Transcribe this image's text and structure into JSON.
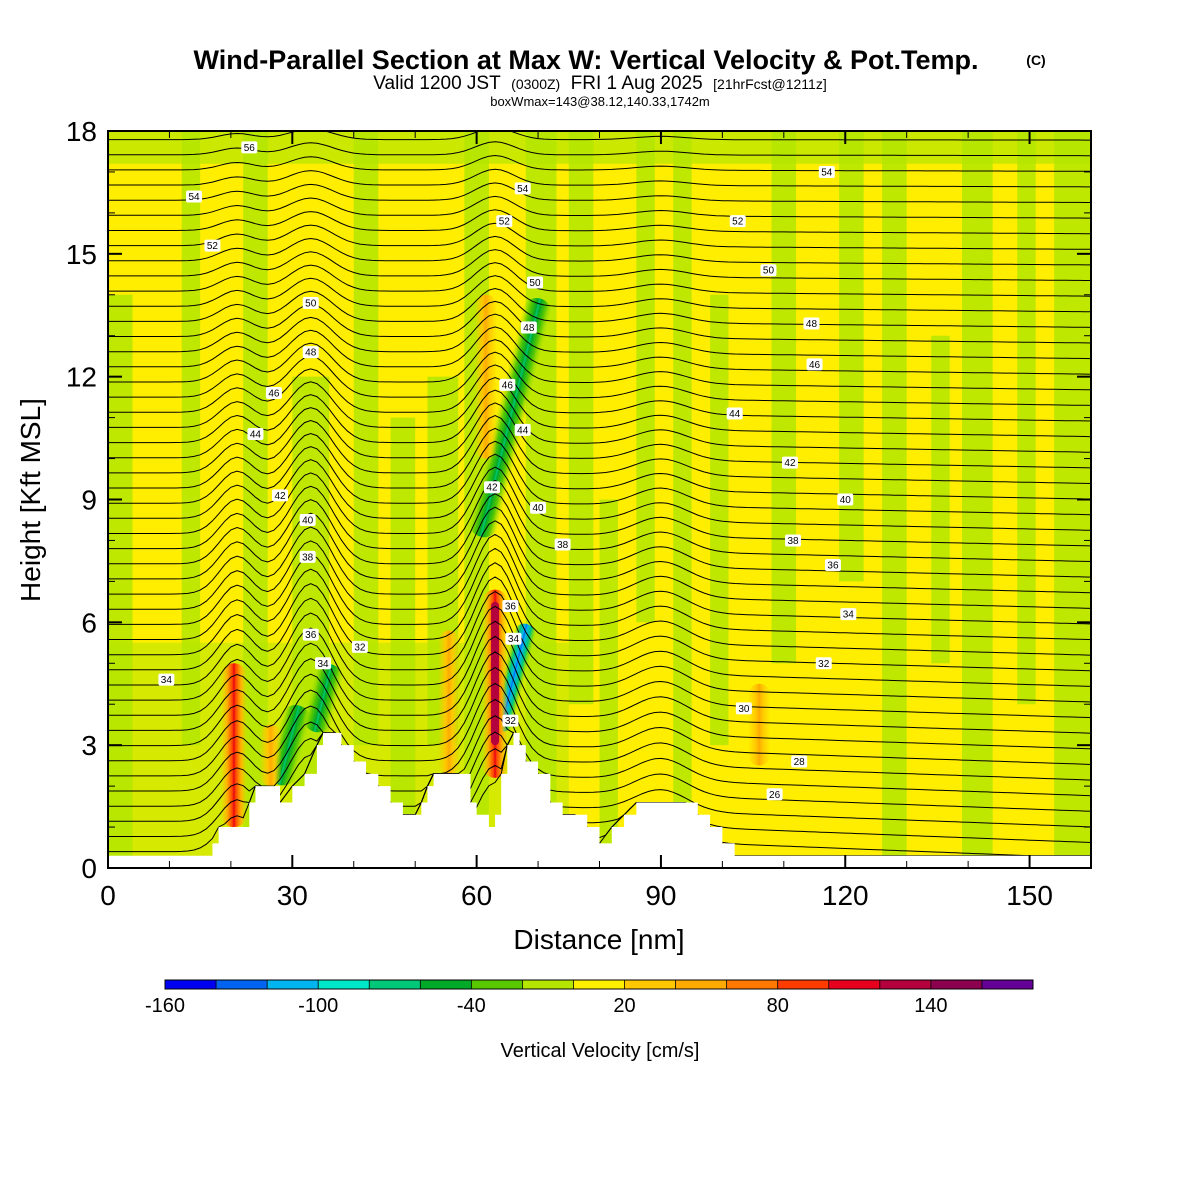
{
  "title": {
    "main": "Wind-Parallel Section at Max W: Vertical Velocity & Pot.Temp.",
    "copyright": "(C)",
    "valid_prefix": "Valid 1200 JST",
    "utc": "(0300Z)",
    "valid_date": "FRI 1 Aug 2025",
    "forecast": "[21hrFcst@1211z]",
    "box": "boxWmax=143@38.12,140.33,1742m"
  },
  "chart_data": {
    "type": "heatmap",
    "xlabel": "Distance [nm]",
    "ylabel": "Height [Kft MSL]",
    "xlim": [
      0,
      160
    ],
    "ylim": [
      0,
      18
    ],
    "x_ticks": [
      "0",
      "30",
      "60",
      "90",
      "120",
      "150"
    ],
    "x_tick_values": [
      0,
      30,
      60,
      90,
      120,
      150
    ],
    "y_ticks": [
      "0",
      "3",
      "6",
      "9",
      "12",
      "15",
      "18"
    ],
    "y_tick_values": [
      0,
      3,
      6,
      9,
      12,
      15,
      18
    ],
    "field": "Vertical Velocity [cm/s]",
    "background_level_color": "#ffee00",
    "terrain": [
      [
        0,
        0.3
      ],
      [
        16,
        0.3
      ],
      [
        17,
        0.6
      ],
      [
        18,
        1.0
      ],
      [
        22,
        1.0
      ],
      [
        23,
        1.6
      ],
      [
        24,
        2.0
      ],
      [
        26,
        2.0
      ],
      [
        28,
        1.6
      ],
      [
        30,
        2.0
      ],
      [
        32,
        2.3
      ],
      [
        34,
        3.0
      ],
      [
        35,
        3.3
      ],
      [
        37,
        3.3
      ],
      [
        38,
        3.0
      ],
      [
        40,
        2.6
      ],
      [
        42,
        2.3
      ],
      [
        44,
        2.0
      ],
      [
        46,
        1.6
      ],
      [
        48,
        1.3
      ],
      [
        50,
        1.3
      ],
      [
        51,
        1.6
      ],
      [
        52,
        2.0
      ],
      [
        53,
        2.3
      ],
      [
        57,
        2.3
      ],
      [
        59,
        1.6
      ],
      [
        60,
        1.3
      ],
      [
        62,
        1.0
      ],
      [
        63,
        1.3
      ],
      [
        64,
        2.3
      ],
      [
        65,
        3.0
      ],
      [
        66,
        3.3
      ],
      [
        67,
        3.0
      ],
      [
        68,
        2.6
      ],
      [
        70,
        2.3
      ],
      [
        72,
        1.6
      ],
      [
        74,
        1.3
      ],
      [
        76,
        1.3
      ],
      [
        78,
        1.0
      ],
      [
        80,
        0.6
      ],
      [
        82,
        1.0
      ],
      [
        84,
        1.3
      ],
      [
        86,
        1.6
      ],
      [
        94,
        1.6
      ],
      [
        96,
        1.3
      ],
      [
        98,
        1.0
      ],
      [
        100,
        0.6
      ],
      [
        102,
        0.3
      ],
      [
        160,
        0.3
      ]
    ],
    "updrafts": [
      {
        "x": 20.5,
        "z0": 1.0,
        "z1": 5.0,
        "w": 100
      },
      {
        "x": 26.5,
        "z0": 2.0,
        "z1": 3.5,
        "w": 40
      },
      {
        "x": 55.5,
        "z0": 2.3,
        "z1": 5.8,
        "w": 40
      },
      {
        "x": 63.0,
        "z0": 2.2,
        "z1": 6.8,
        "w": 143
      },
      {
        "x": 61.5,
        "z0": 10.0,
        "z1": 14.0,
        "w": 40
      },
      {
        "x": 106,
        "z0": 2.5,
        "z1": 4.5,
        "w": 30
      }
    ],
    "downdrafts": [
      {
        "x": 29.5,
        "z0": 2.0,
        "z1": 4.0,
        "w": -60
      },
      {
        "x": 35.0,
        "z0": 3.3,
        "z1": 5.0,
        "w": -70
      },
      {
        "x": 66.0,
        "z0": 3.3,
        "z1": 6.0,
        "w": -150
      },
      {
        "x": 65.5,
        "z0": 8.0,
        "z1": 14.0,
        "w": -60
      }
    ],
    "isentropes": [
      "26",
      "28",
      "30",
      "32",
      "34",
      "36",
      "38",
      "40",
      "42",
      "44",
      "46",
      "48",
      "50",
      "52",
      "54",
      "56"
    ],
    "isentrope_labels": [
      {
        "text": "34",
        "x": 9.5,
        "z": 4.6
      },
      {
        "text": "36",
        "x": 33.0,
        "z": 5.7
      },
      {
        "text": "34",
        "x": 35.0,
        "z": 5.0
      },
      {
        "text": "32",
        "x": 41.0,
        "z": 5.4
      },
      {
        "text": "38",
        "x": 32.5,
        "z": 7.6
      },
      {
        "text": "40",
        "x": 32.5,
        "z": 8.5
      },
      {
        "text": "42",
        "x": 28.0,
        "z": 9.1
      },
      {
        "text": "44",
        "x": 24.0,
        "z": 10.6
      },
      {
        "text": "46",
        "x": 27.0,
        "z": 11.6
      },
      {
        "text": "48",
        "x": 33.0,
        "z": 12.6
      },
      {
        "text": "50",
        "x": 33.0,
        "z": 13.8
      },
      {
        "text": "52",
        "x": 17.0,
        "z": 15.2
      },
      {
        "text": "54",
        "x": 14.0,
        "z": 16.4
      },
      {
        "text": "56",
        "x": 23.0,
        "z": 17.6
      },
      {
        "text": "36",
        "x": 65.5,
        "z": 6.4
      },
      {
        "text": "34",
        "x": 66.0,
        "z": 5.6
      },
      {
        "text": "32",
        "x": 65.5,
        "z": 3.6
      },
      {
        "text": "38",
        "x": 74.0,
        "z": 7.9
      },
      {
        "text": "40",
        "x": 70.0,
        "z": 8.8
      },
      {
        "text": "42",
        "x": 62.5,
        "z": 9.3
      },
      {
        "text": "44",
        "x": 67.5,
        "z": 10.7
      },
      {
        "text": "46",
        "x": 65.0,
        "z": 11.8
      },
      {
        "text": "48",
        "x": 68.5,
        "z": 13.2
      },
      {
        "text": "50",
        "x": 69.5,
        "z": 14.3
      },
      {
        "text": "52",
        "x": 64.5,
        "z": 15.8
      },
      {
        "text": "54",
        "x": 67.5,
        "z": 16.6
      },
      {
        "text": "26",
        "x": 108.5,
        "z": 1.8
      },
      {
        "text": "28",
        "x": 112.5,
        "z": 2.6
      },
      {
        "text": "30",
        "x": 103.5,
        "z": 3.9
      },
      {
        "text": "32",
        "x": 116.5,
        "z": 5.0
      },
      {
        "text": "34",
        "x": 120.5,
        "z": 6.2
      },
      {
        "text": "36",
        "x": 118.0,
        "z": 7.4
      },
      {
        "text": "38",
        "x": 111.5,
        "z": 8.0
      },
      {
        "text": "40",
        "x": 120.0,
        "z": 9.0
      },
      {
        "text": "42",
        "x": 111.0,
        "z": 9.9
      },
      {
        "text": "44",
        "x": 102.0,
        "z": 11.1
      },
      {
        "text": "46",
        "x": 115.0,
        "z": 12.3
      },
      {
        "text": "48",
        "x": 114.5,
        "z": 13.3
      },
      {
        "text": "50",
        "x": 107.5,
        "z": 14.6
      },
      {
        "text": "52",
        "x": 102.5,
        "z": 15.8
      },
      {
        "text": "54",
        "x": 117.0,
        "z": 17.0
      }
    ],
    "colorbar": {
      "title": "Vertical Velocity [cm/s]",
      "colors": [
        "#0000f0",
        "#0064f0",
        "#00b4f0",
        "#00e6c8",
        "#00c878",
        "#00aa28",
        "#5ac800",
        "#b4e600",
        "#ffee00",
        "#ffc800",
        "#ffaa00",
        "#ff7800",
        "#ff3c00",
        "#e6001e",
        "#b4003c",
        "#8c0050",
        "#640096"
      ],
      "tick_labels": [
        "-160",
        "-100",
        "-40",
        "20",
        "80",
        "140"
      ],
      "tick_positions": [
        0,
        3,
        6,
        9,
        12,
        15
      ]
    }
  }
}
